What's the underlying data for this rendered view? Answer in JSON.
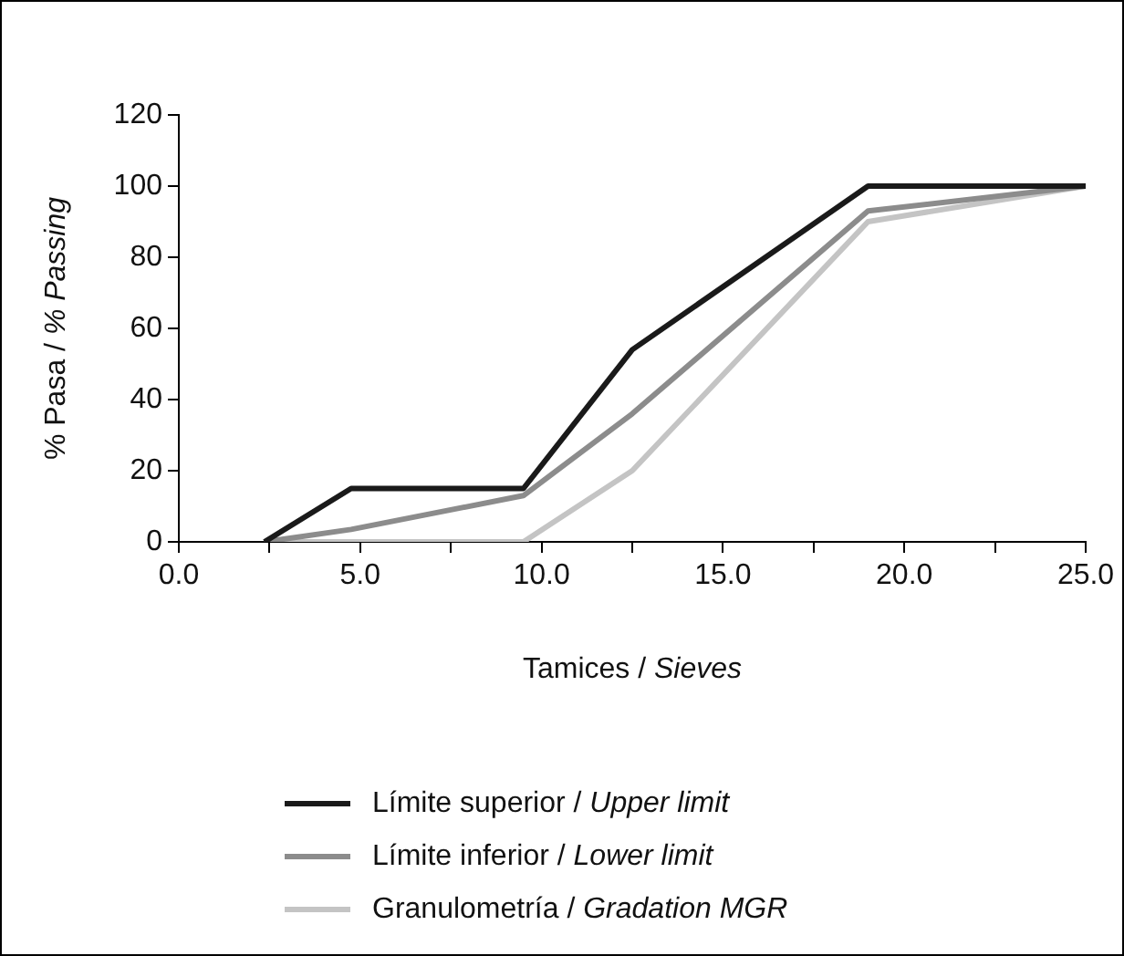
{
  "chart_data": {
    "type": "line",
    "xlabel": "Tamices / Sieves",
    "ylabel": "% Pasa / % Passing",
    "xlim": [
      0,
      25
    ],
    "xticks": [
      {
        "value": 0,
        "label": "0.0"
      },
      {
        "value": 2.5,
        "label": null
      },
      "5.0",
      {
        "value": 7.5,
        "label": null
      },
      {
        "value": 10,
        "label": "10.0"
      },
      {
        "value": 12.5,
        "label": null
      },
      {
        "value": 15,
        "label": "15.0"
      },
      {
        "value": 17.5,
        "label": null
      },
      {
        "value": 20,
        "label": "20.0"
      },
      {
        "value": 22.5,
        "label": null
      },
      {
        "value": 25,
        "label": "25.0"
      }
    ],
    "ylim": [
      0,
      120
    ],
    "yticks": [
      0,
      20,
      40,
      60,
      80,
      100,
      120
    ],
    "grid": false,
    "legend": "bottom",
    "marker": "none",
    "line_style": "solid",
    "series": [
      {
        "name": "Límite superior / Upper limit",
        "color": "#1a1a1a",
        "x": [
          2.36,
          4.75,
          9.5,
          12.5,
          19,
          25
        ],
        "values": [
          0,
          15,
          15,
          54,
          100,
          100
        ]
      },
      {
        "name": "Límite inferior / Lower limit",
        "color": "#8c8c8c",
        "x": [
          2.36,
          4.75,
          9.5,
          12.5,
          19,
          25
        ],
        "values": [
          0,
          3.5,
          13,
          36,
          93,
          100
        ]
      },
      {
        "name": "Granulometría / Gradation MGR",
        "color": "#c4c4c4",
        "x": [
          2.36,
          4.75,
          9.5,
          12.5,
          19,
          25
        ],
        "values": [
          0,
          0,
          0,
          20,
          90,
          100
        ]
      }
    ]
  }
}
